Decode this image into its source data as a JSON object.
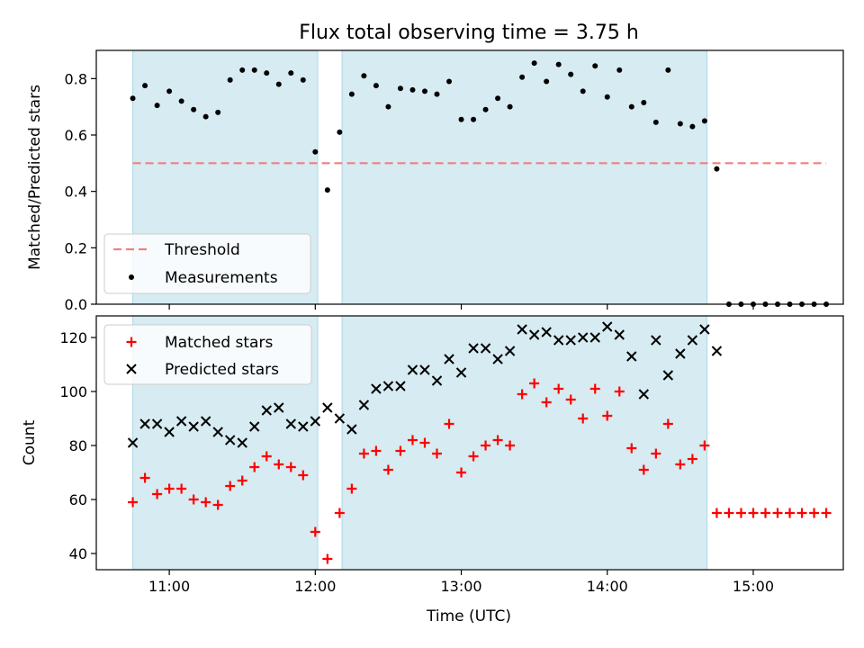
{
  "title": "Flux total observing time = 3.75 h",
  "colors": {
    "shade": "#add8e6",
    "threshold": "#f08080",
    "measurement": "#000000",
    "matched": "#ff0000",
    "predicted": "#000000"
  },
  "chart_data": [
    {
      "type": "scatter",
      "panel": "top",
      "ylabel": "Matched/Predicted stars",
      "ylim": [
        0,
        0.9
      ],
      "yticks": [
        0.0,
        0.2,
        0.4,
        0.6,
        0.8
      ],
      "ytick_labels": [
        "0.0",
        "0.2",
        "0.4",
        "0.6",
        "0.8"
      ],
      "xlim": [
        "10:30",
        "15:37"
      ],
      "shaded_intervals": [
        [
          "10:45",
          "12:01"
        ],
        [
          "12:11",
          "14:41"
        ]
      ],
      "legend": {
        "placement": "lower-left",
        "entries": [
          "Threshold",
          "Measurements"
        ]
      },
      "series": [
        {
          "name": "Threshold",
          "kind": "dashed-line",
          "x": [
            "10:45",
            "15:30"
          ],
          "y": [
            0.5,
            0.5
          ]
        },
        {
          "name": "Measurements",
          "kind": "dot",
          "x": [
            "10:45",
            "10:50",
            "10:55",
            "11:00",
            "11:05",
            "11:10",
            "11:15",
            "11:20",
            "11:25",
            "11:30",
            "11:35",
            "11:40",
            "11:45",
            "11:50",
            "11:55",
            "12:00",
            "12:05",
            "12:10",
            "12:15",
            "12:20",
            "12:25",
            "12:30",
            "12:35",
            "12:40",
            "12:45",
            "12:50",
            "12:55",
            "13:00",
            "13:05",
            "13:10",
            "13:15",
            "13:20",
            "13:25",
            "13:30",
            "13:35",
            "13:40",
            "13:45",
            "13:50",
            "13:55",
            "14:00",
            "14:05",
            "14:10",
            "14:15",
            "14:20",
            "14:25",
            "14:30",
            "14:35",
            "14:40",
            "14:45",
            "14:50",
            "14:55",
            "15:00",
            "15:05",
            "15:10",
            "15:15",
            "15:20",
            "15:25",
            "15:30"
          ],
          "y": [
            0.73,
            0.775,
            0.705,
            0.755,
            0.72,
            0.69,
            0.665,
            0.68,
            0.795,
            0.83,
            0.83,
            0.82,
            0.78,
            0.82,
            0.795,
            0.54,
            0.405,
            0.61,
            0.745,
            0.81,
            0.775,
            0.7,
            0.765,
            0.76,
            0.755,
            0.745,
            0.79,
            0.655,
            0.655,
            0.69,
            0.73,
            0.7,
            0.805,
            0.855,
            0.79,
            0.85,
            0.815,
            0.755,
            0.845,
            0.735,
            0.83,
            0.7,
            0.715,
            0.645,
            0.83,
            0.64,
            0.63,
            0.65,
            0.48,
            0.0,
            0.0,
            0.0,
            0.0,
            0.0,
            0.0,
            0.0,
            0.0,
            0.0
          ]
        }
      ]
    },
    {
      "type": "scatter",
      "panel": "bottom",
      "xlabel": "Time (UTC)",
      "ylabel": "Count",
      "ylim": [
        34,
        128
      ],
      "yticks": [
        40,
        60,
        80,
        100,
        120
      ],
      "ytick_labels": [
        "40",
        "60",
        "80",
        "100",
        "120"
      ],
      "xlim": [
        "10:30",
        "15:37"
      ],
      "xticks": [
        "11:00",
        "12:00",
        "13:00",
        "14:00",
        "15:00"
      ],
      "xtick_labels": [
        "11:00",
        "12:00",
        "13:00",
        "14:00",
        "15:00"
      ],
      "shaded_intervals": [
        [
          "10:45",
          "12:01"
        ],
        [
          "12:11",
          "14:41"
        ]
      ],
      "legend": {
        "placement": "upper-left",
        "entries": [
          "Matched stars",
          "Predicted stars"
        ]
      },
      "series": [
        {
          "name": "Matched stars",
          "marker": "+",
          "x": [
            "10:45",
            "10:50",
            "10:55",
            "11:00",
            "11:05",
            "11:10",
            "11:15",
            "11:20",
            "11:25",
            "11:30",
            "11:35",
            "11:40",
            "11:45",
            "11:50",
            "11:55",
            "12:00",
            "12:05",
            "12:10",
            "12:15",
            "12:20",
            "12:25",
            "12:30",
            "12:35",
            "12:40",
            "12:45",
            "12:50",
            "12:55",
            "13:00",
            "13:05",
            "13:10",
            "13:15",
            "13:20",
            "13:25",
            "13:30",
            "13:35",
            "13:40",
            "13:45",
            "13:50",
            "13:55",
            "14:00",
            "14:05",
            "14:10",
            "14:15",
            "14:20",
            "14:25",
            "14:30",
            "14:35",
            "14:40",
            "14:45",
            "14:50",
            "14:55",
            "15:00",
            "15:05",
            "15:10",
            "15:15",
            "15:20",
            "15:25",
            "15:30"
          ],
          "y": [
            59,
            68,
            62,
            64,
            64,
            60,
            59,
            58,
            65,
            67,
            72,
            76,
            73,
            72,
            69,
            48,
            38,
            55,
            64,
            77,
            78,
            71,
            78,
            82,
            81,
            77,
            88,
            70,
            76,
            80,
            82,
            80,
            99,
            103,
            96,
            101,
            97,
            90,
            101,
            91,
            100,
            79,
            71,
            77,
            88,
            73,
            75,
            80,
            55,
            55,
            55,
            55,
            55,
            55,
            55,
            55,
            55,
            55
          ]
        },
        {
          "name": "Predicted stars",
          "marker": "x",
          "x": [
            "10:45",
            "10:50",
            "10:55",
            "11:00",
            "11:05",
            "11:10",
            "11:15",
            "11:20",
            "11:25",
            "11:30",
            "11:35",
            "11:40",
            "11:45",
            "11:50",
            "11:55",
            "12:00",
            "12:05",
            "12:10",
            "12:15",
            "12:20",
            "12:25",
            "12:30",
            "12:35",
            "12:40",
            "12:45",
            "12:50",
            "12:55",
            "13:00",
            "13:05",
            "13:10",
            "13:15",
            "13:20",
            "13:25",
            "13:30",
            "13:35",
            "13:40",
            "13:45",
            "13:50",
            "13:55",
            "14:00",
            "14:05",
            "14:10",
            "14:15",
            "14:20",
            "14:25",
            "14:30",
            "14:35",
            "14:40",
            "14:45"
          ],
          "y": [
            81,
            88,
            88,
            85,
            89,
            87,
            89,
            85,
            82,
            81,
            87,
            93,
            94,
            88,
            87,
            89,
            94,
            90,
            86,
            95,
            101,
            102,
            102,
            108,
            108,
            104,
            112,
            107,
            116,
            116,
            112,
            115,
            123,
            121,
            122,
            119,
            119,
            120,
            120,
            124,
            121,
            113,
            99,
            119,
            106,
            114,
            119,
            123,
            115
          ]
        }
      ]
    }
  ]
}
